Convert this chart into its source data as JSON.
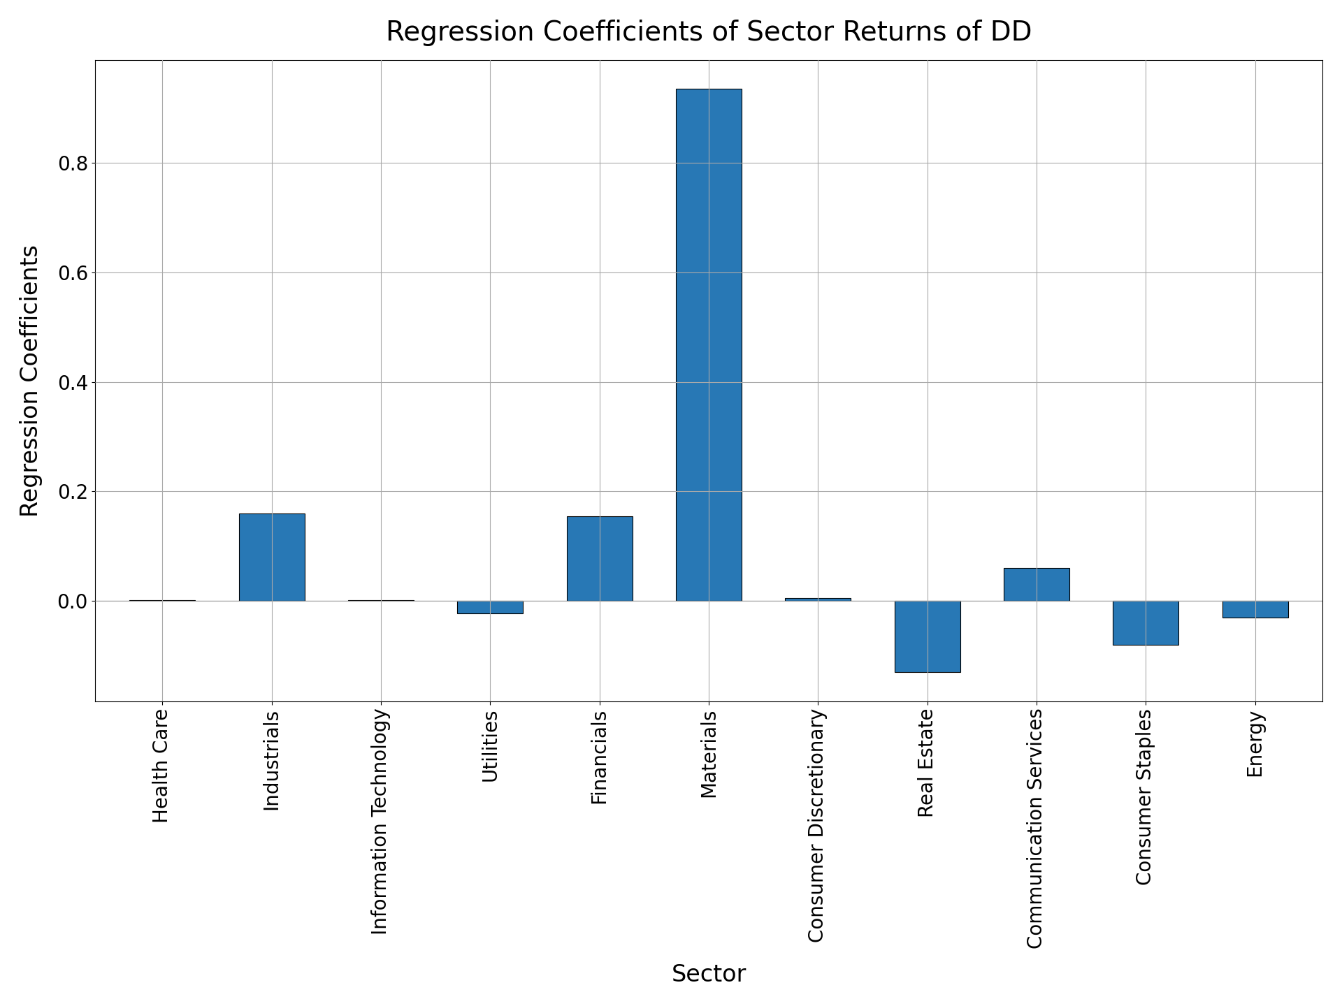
{
  "categories": [
    "Health Care",
    "Industrials",
    "Information Technology",
    "Utilities",
    "Financials",
    "Materials",
    "Consumer Discretionary",
    "Real Estate",
    "Communication Services",
    "Consumer Staples",
    "Energy"
  ],
  "values": [
    0.002,
    0.16,
    0.002,
    -0.022,
    0.155,
    0.935,
    0.005,
    -0.13,
    0.06,
    -0.08,
    -0.03
  ],
  "bar_color": "#2878b5",
  "title": "Regression Coefficients of Sector Returns of DD",
  "xlabel": "Sector",
  "ylabel": "Regression Coefficients",
  "title_fontsize": 28,
  "label_fontsize": 24,
  "tick_fontsize": 20,
  "background_color": "#ffffff",
  "grid_color": "#aaaaaa",
  "bar_width": 0.6,
  "edgecolor": "black",
  "linewidth": 0.8
}
